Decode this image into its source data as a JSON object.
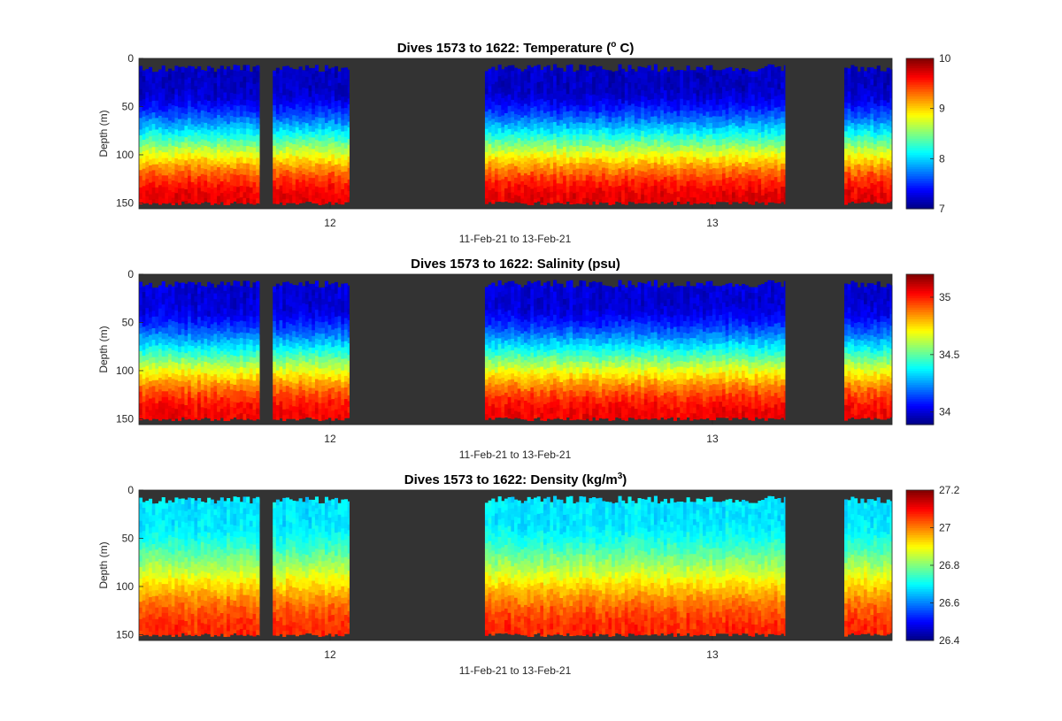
{
  "chart_data": [
    {
      "type": "heatmap",
      "title_main": "Dives 1573 to 1622: Temperature (",
      "title_sup": "o",
      "title_tail": " C)",
      "ylabel": "Depth (m)",
      "xlabel": "11-Feb-21 to 13-Feb-21",
      "x_ticks": [
        {
          "label": "12",
          "day": 12.0
        },
        {
          "label": "13",
          "day": 13.0
        }
      ],
      "x_range_days": [
        11.5,
        13.47
      ],
      "y_ticks": [
        "0",
        "50",
        "100",
        "150"
      ],
      "y_tick_values": [
        0,
        50,
        100,
        150
      ],
      "ylim": [
        0,
        156
      ],
      "colorbar": {
        "min": 7,
        "max": 10,
        "ticks": [
          "7",
          "8",
          "9",
          "10"
        ],
        "tick_values": [
          7,
          8,
          9,
          10
        ]
      },
      "colormap": "jet",
      "nodata_color": "#333333",
      "profile_model": {
        "surface": 7.2,
        "deep": 9.7
      }
    },
    {
      "type": "heatmap",
      "title_main": "Dives 1573 to 1622: Salinity (psu)",
      "title_sup": "",
      "title_tail": "",
      "ylabel": "Depth (m)",
      "xlabel": "11-Feb-21 to 13-Feb-21",
      "x_ticks": [
        {
          "label": "12",
          "day": 12.0
        },
        {
          "label": "13",
          "day": 13.0
        }
      ],
      "x_range_days": [
        11.5,
        13.47
      ],
      "y_ticks": [
        "0",
        "50",
        "100",
        "150"
      ],
      "y_tick_values": [
        0,
        50,
        100,
        150
      ],
      "ylim": [
        0,
        156
      ],
      "colorbar": {
        "min": 33.89,
        "max": 35.2,
        "ticks": [
          "34",
          "34.5",
          "35"
        ],
        "tick_values": [
          34,
          34.5,
          35
        ]
      },
      "colormap": "jet",
      "nodata_color": "#333333",
      "profile_model": {
        "surface": 34.0,
        "deep": 35.05
      }
    },
    {
      "type": "heatmap",
      "title_main": "Dives 1573 to 1622: Density (kg/m",
      "title_sup": "3",
      "title_tail": ")",
      "ylabel": "Depth (m)",
      "xlabel": "11-Feb-21 to 13-Feb-21",
      "x_ticks": [
        {
          "label": "12",
          "day": 12.0
        },
        {
          "label": "13",
          "day": 13.0
        }
      ],
      "x_range_days": [
        11.5,
        13.47
      ],
      "y_ticks": [
        "0",
        "50",
        "100",
        "150"
      ],
      "y_tick_values": [
        0,
        50,
        100,
        150
      ],
      "ylim": [
        0,
        156
      ],
      "colorbar": {
        "min": 26.4,
        "max": 27.2,
        "ticks": [
          "26.4",
          "26.6",
          "26.8",
          "27",
          "27.2"
        ],
        "tick_values": [
          26.4,
          26.6,
          26.8,
          27.0,
          27.2
        ]
      },
      "colormap": "jet",
      "nodata_color": "#333333",
      "profile_model": {
        "surface": 26.68,
        "deep": 27.07
      }
    }
  ],
  "data_segments_days": [
    {
      "start": 11.5,
      "end": 11.815
    },
    {
      "start": 11.85,
      "end": 12.05
    },
    {
      "start": 12.405,
      "end": 13.19
    },
    {
      "start": 13.345,
      "end": 13.47
    }
  ]
}
